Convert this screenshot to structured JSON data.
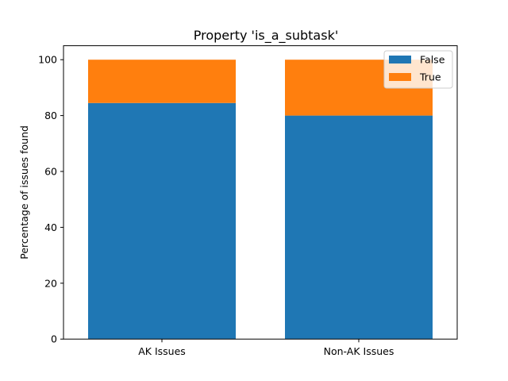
{
  "chart_data": {
    "type": "bar",
    "stacked": true,
    "title": "Property 'is_a_subtask'",
    "xlabel": "",
    "ylabel": "Percentage of issues found",
    "categories": [
      "AK Issues",
      "Non-AK Issues"
    ],
    "series": [
      {
        "name": "False",
        "values": [
          84.5,
          80.0
        ],
        "color": "#1f77b4"
      },
      {
        "name": "True",
        "values": [
          15.5,
          20.0
        ],
        "color": "#ff7f0e"
      }
    ],
    "ylim": [
      0,
      105
    ],
    "yticks": [
      0,
      20,
      40,
      60,
      80,
      100
    ],
    "grid": false,
    "legend": {
      "placement": "top-right"
    }
  }
}
